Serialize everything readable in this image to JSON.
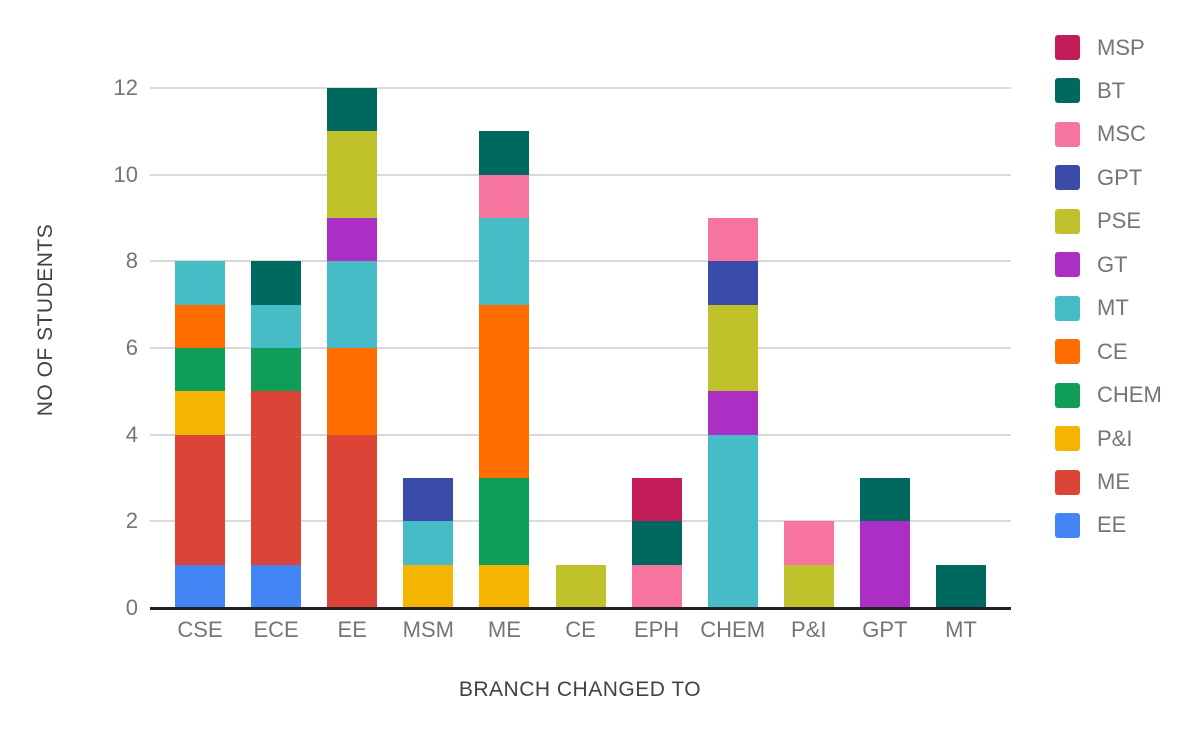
{
  "chart_data": {
    "type": "bar",
    "variant": "stacked",
    "title": "",
    "xlabel": "BRANCH CHANGED TO",
    "ylabel": "NO OF STUDENTS",
    "ylim": [
      0,
      12
    ],
    "yticks": [
      0,
      2,
      4,
      6,
      8,
      10,
      12
    ],
    "grid": true,
    "legend_position": "right",
    "legend_order_top_to_bottom": [
      "MSP",
      "BT",
      "MSC",
      "GPT",
      "PSE",
      "GT",
      "MT",
      "CE",
      "CHEM",
      "P&I",
      "ME",
      "EE"
    ],
    "categories": [
      "CSE",
      "ECE",
      "EE",
      "MSM",
      "ME",
      "CE",
      "EPH",
      "CHEM",
      "P&I",
      "GPT",
      "MT"
    ],
    "series": [
      {
        "name": "EE",
        "color": "#4285F4",
        "values": [
          1,
          1,
          0,
          0,
          0,
          0,
          0,
          0,
          0,
          0,
          0
        ]
      },
      {
        "name": "ME",
        "color": "#DB4437",
        "values": [
          3,
          4,
          4,
          0,
          0,
          0,
          0,
          0,
          0,
          0,
          0
        ]
      },
      {
        "name": "P&I",
        "color": "#F4B400",
        "values": [
          1,
          0,
          0,
          1,
          1,
          0,
          0,
          0,
          0,
          0,
          0
        ]
      },
      {
        "name": "CHEM",
        "color": "#0F9D58",
        "values": [
          1,
          1,
          0,
          0,
          2,
          0,
          0,
          0,
          0,
          0,
          0
        ]
      },
      {
        "name": "CE",
        "color": "#FF6D00",
        "values": [
          1,
          0,
          2,
          0,
          4,
          0,
          0,
          0,
          0,
          0,
          0
        ]
      },
      {
        "name": "MT",
        "color": "#46BDC6",
        "values": [
          1,
          1,
          2,
          1,
          2,
          0,
          0,
          4,
          0,
          0,
          0
        ]
      },
      {
        "name": "GT",
        "color": "#AB2FC4",
        "values": [
          0,
          0,
          1,
          0,
          0,
          0,
          0,
          1,
          0,
          2,
          0
        ]
      },
      {
        "name": "PSE",
        "color": "#C0C22B",
        "values": [
          0,
          0,
          2,
          0,
          0,
          1,
          0,
          2,
          1,
          0,
          0
        ]
      },
      {
        "name": "GPT",
        "color": "#3A4BA9",
        "values": [
          0,
          0,
          0,
          1,
          0,
          0,
          0,
          1,
          0,
          0,
          0
        ]
      },
      {
        "name": "MSC",
        "color": "#F7749E",
        "values": [
          0,
          0,
          0,
          0,
          1,
          0,
          1,
          1,
          1,
          0,
          0
        ]
      },
      {
        "name": "BT",
        "color": "#00695F",
        "values": [
          0,
          1,
          1,
          0,
          1,
          0,
          1,
          0,
          0,
          1,
          1
        ]
      },
      {
        "name": "MSP",
        "color": "#C21D59",
        "values": [
          0,
          0,
          0,
          0,
          0,
          0,
          1,
          0,
          0,
          0,
          0
        ]
      }
    ],
    "colors": {
      "gridline": "#d9d9d9",
      "axis_line": "#212121",
      "tick_text": "#757575",
      "axis_title_text": "#424242",
      "background": "#ffffff"
    }
  }
}
